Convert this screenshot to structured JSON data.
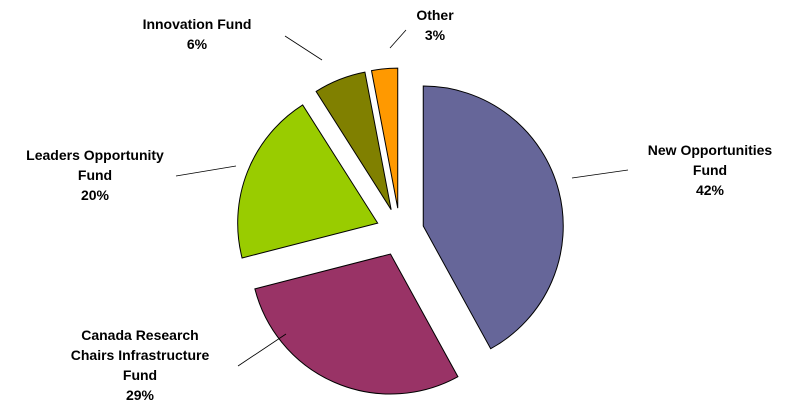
{
  "chart_data": {
    "type": "pie",
    "categories": [
      "New Opportunities Fund",
      "Canada Research Chairs Infrastructure Fund",
      "Leaders Opportunity Fund",
      "Innovation Fund",
      "Other"
    ],
    "values": [
      42,
      29,
      20,
      6,
      3
    ],
    "value_labels": [
      "42%",
      "29%",
      "20%",
      "6%",
      "3%"
    ],
    "colors": [
      "#666699",
      "#993366",
      "#99cc00",
      "#808000",
      "#ff9900"
    ]
  }
}
